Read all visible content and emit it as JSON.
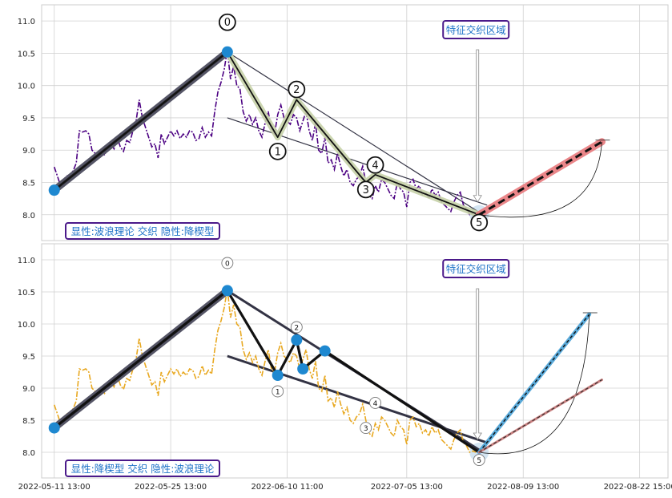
{
  "chart_data": [
    {
      "type": "line",
      "ylim": [
        7.6,
        11.25
      ],
      "yticks": [
        "11.0",
        "10.5",
        "10.0",
        "9.5",
        "9.0",
        "8.5",
        "8.0"
      ],
      "ytick_values": [
        11.0,
        10.5,
        10.0,
        9.5,
        9.0,
        8.5,
        8.0
      ],
      "grid": true,
      "price_series": {
        "color": "#4b0082",
        "style": "dash-dot",
        "values": [
          8.74,
          8.6,
          8.45,
          8.55,
          8.6,
          8.62,
          8.68,
          8.8,
          9.3,
          9.28,
          9.3,
          9.25,
          9.0,
          8.95,
          8.9,
          9.0,
          8.92,
          9.05,
          9.1,
          9.02,
          9.2,
          9.05,
          8.98,
          9.15,
          9.12,
          9.3,
          9.45,
          9.78,
          9.5,
          9.35,
          9.2,
          9.05,
          9.1,
          8.88,
          9.25,
          9.1,
          9.2,
          9.3,
          9.22,
          9.3,
          9.18,
          9.25,
          9.2,
          9.3,
          9.28,
          9.15,
          9.18,
          9.35,
          9.2,
          9.28,
          9.22,
          9.6,
          9.9,
          10.05,
          10.25,
          10.55,
          10.1,
          10.3,
          10.0,
          9.95,
          9.6,
          9.45,
          9.55,
          9.4,
          9.5,
          9.3,
          9.2,
          9.42,
          9.6,
          9.3,
          9.25,
          9.55,
          9.7,
          9.5,
          9.45,
          9.4,
          9.55,
          9.5,
          9.3,
          9.45,
          9.6,
          9.3,
          9.15,
          9.42,
          9.0,
          8.95,
          9.2,
          8.8,
          8.85,
          8.7,
          8.95,
          8.75,
          8.6,
          8.7,
          8.5,
          8.45,
          8.55,
          8.6,
          8.75,
          8.5,
          8.3,
          8.25,
          8.45,
          8.35,
          8.55,
          8.5,
          8.4,
          8.3,
          8.25,
          8.5,
          8.4,
          8.35,
          8.12,
          8.5,
          8.55,
          8.4,
          8.45,
          8.3,
          8.35,
          8.25,
          8.4,
          8.3,
          8.35,
          8.2,
          8.15,
          8.1,
          8.05,
          8.2,
          8.3,
          8.35,
          8.15,
          8.1,
          8.0,
          8.02,
          8.0
        ]
      },
      "wave_points": [
        {
          "x": 0,
          "y": 8.38
        },
        {
          "x": 55,
          "y": 10.52
        },
        {
          "x": 71,
          "y": 9.2
        },
        {
          "x": 77,
          "y": 9.78
        },
        {
          "x": 99,
          "y": 8.5
        },
        {
          "x": 102,
          "y": 8.62
        },
        {
          "x": 135,
          "y": 8.0
        }
      ],
      "labels": [
        {
          "text": "0",
          "x": 55,
          "y": 10.98
        },
        {
          "text": "1",
          "x": 71,
          "y": 8.98
        },
        {
          "text": "2",
          "x": 77,
          "y": 9.94
        },
        {
          "text": "3",
          "x": 99,
          "y": 8.39
        },
        {
          "text": "4",
          "x": 102,
          "y": 8.77
        },
        {
          "text": "5",
          "x": 135,
          "y": 7.88
        }
      ],
      "projection": {
        "from": {
          "x": 135,
          "y": 8.0
        },
        "to": {
          "x": 174,
          "y": 9.13
        },
        "color": "#e8797d"
      },
      "zone_label": "特征交织区域",
      "caption": "显性:波浪理论 交织 隐性:降楔型"
    },
    {
      "type": "line",
      "ylim": [
        7.6,
        11.25
      ],
      "yticks": [
        "11.0",
        "10.5",
        "10.0",
        "9.5",
        "9.0",
        "8.5",
        "8.0"
      ],
      "ytick_values": [
        11.0,
        10.5,
        10.0,
        9.5,
        9.0,
        8.5,
        8.0
      ],
      "grid": true,
      "price_series": {
        "color": "#e8a820",
        "style": "dash-dot",
        "values": [
          8.74,
          8.6,
          8.45,
          8.55,
          8.6,
          8.62,
          8.68,
          8.8,
          9.3,
          9.28,
          9.3,
          9.25,
          9.0,
          8.95,
          8.9,
          9.0,
          8.92,
          9.05,
          9.1,
          9.02,
          9.2,
          9.05,
          8.98,
          9.15,
          9.12,
          9.3,
          9.45,
          9.78,
          9.5,
          9.35,
          9.2,
          9.05,
          9.1,
          8.88,
          9.25,
          9.1,
          9.2,
          9.3,
          9.22,
          9.3,
          9.18,
          9.25,
          9.2,
          9.3,
          9.28,
          9.15,
          9.18,
          9.35,
          9.2,
          9.28,
          9.22,
          9.6,
          9.9,
          10.05,
          10.25,
          10.55,
          10.1,
          10.3,
          10.0,
          9.95,
          9.6,
          9.45,
          9.55,
          9.4,
          9.5,
          9.3,
          9.2,
          9.42,
          9.6,
          9.3,
          9.25,
          9.55,
          9.7,
          9.5,
          9.45,
          9.4,
          9.55,
          9.5,
          9.3,
          9.45,
          9.6,
          9.3,
          9.15,
          9.42,
          9.0,
          8.95,
          9.2,
          8.8,
          8.85,
          8.7,
          8.95,
          8.75,
          8.6,
          8.7,
          8.5,
          8.45,
          8.55,
          8.6,
          8.75,
          8.5,
          8.3,
          8.25,
          8.45,
          8.35,
          8.55,
          8.5,
          8.4,
          8.3,
          8.25,
          8.5,
          8.4,
          8.35,
          8.12,
          8.5,
          8.55,
          8.4,
          8.45,
          8.3,
          8.35,
          8.25,
          8.4,
          8.3,
          8.35,
          8.2,
          8.15,
          8.1,
          8.05,
          8.2,
          8.3,
          8.35,
          8.15,
          8.1,
          8.0,
          8.02,
          8.0
        ]
      },
      "wave_points": [
        {
          "x": 0,
          "y": 8.38
        },
        {
          "x": 55,
          "y": 10.52
        },
        {
          "x": 71,
          "y": 9.2
        },
        {
          "x": 77,
          "y": 9.75
        },
        {
          "x": 79,
          "y": 9.3
        },
        {
          "x": 86,
          "y": 9.58
        },
        {
          "x": 135,
          "y": 8.0
        }
      ],
      "labels": [
        {
          "text": "0",
          "x": 55,
          "y": 10.95
        },
        {
          "text": "1",
          "x": 71,
          "y": 8.95
        },
        {
          "text": "2",
          "x": 77,
          "y": 9.95
        },
        {
          "text": "3",
          "x": 99,
          "y": 8.38
        },
        {
          "text": "4",
          "x": 102,
          "y": 8.77
        },
        {
          "text": "5",
          "x": 135,
          "y": 7.88
        }
      ],
      "projection": {
        "from": {
          "x": 135,
          "y": 8.0
        },
        "to": {
          "x": 170,
          "y": 10.15
        },
        "color": "#4aa3d8"
      },
      "projection2": {
        "from": {
          "x": 135,
          "y": 8.0
        },
        "to": {
          "x": 174,
          "y": 9.13
        },
        "color": "#c88080"
      },
      "zone_label": "特征交织区域",
      "caption": "显性:降楔型 交织 隐性:波浪理论"
    }
  ],
  "x_tick_labels": [
    "2022-05-11 13:00",
    "2022-05-25 13:00",
    "2022-06-10 11:00",
    "2022-07-05 13:00",
    "2022-08-09 13:00",
    "2022-08-22 15:00"
  ],
  "x_tick_index": [
    0,
    37,
    74,
    112,
    149,
    186
  ],
  "x_range": [
    -4,
    195
  ],
  "colors": {
    "wave_highlight": "#c7d2a8",
    "pivot_marker": "#1e88d0",
    "caption_border": "#4b1a8a",
    "caption_text": "#1e73c8",
    "grid": "#d0d0d0"
  }
}
